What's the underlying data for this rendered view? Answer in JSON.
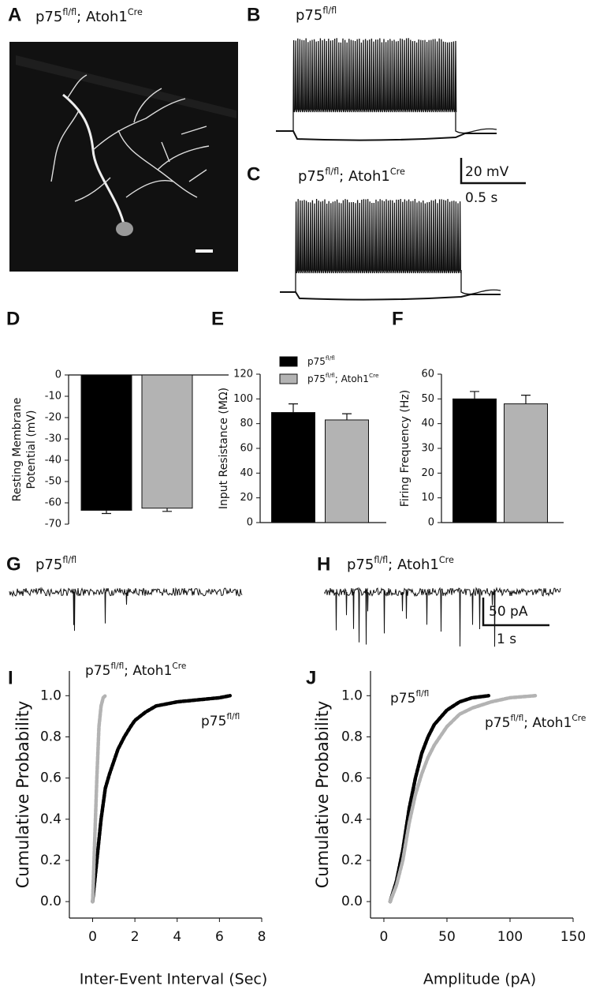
{
  "figure": {
    "panel_labels": [
      "A",
      "B",
      "C",
      "D",
      "E",
      "F",
      "G",
      "H",
      "I",
      "J"
    ],
    "genotypes": {
      "control": {
        "base": "p75",
        "sup": "fl/fl"
      },
      "mutant": {
        "base": "p75",
        "sup": "fl/fl",
        "base2": "; Atoh1",
        "sup2": "Cre"
      }
    },
    "scale_bars": {
      "current_clamp": [
        "20 mV",
        "0.5 s"
      ],
      "voltage_clamp": [
        "50 pA",
        "1 s"
      ]
    }
  },
  "chart_data": [
    {
      "type": "bar",
      "panel": "D",
      "ylabel": [
        "Resting Membrane",
        "Potential (mV)"
      ],
      "ylim": [
        -70,
        0
      ],
      "yticks": [
        0,
        -10,
        -20,
        -30,
        -40,
        -50,
        -60,
        -70
      ],
      "series": [
        {
          "color": "#000000",
          "values": [
            -63.5
          ],
          "errors": [
            1.5
          ]
        },
        {
          "color": "#b3b3b3",
          "values": [
            -62.5
          ],
          "errors": [
            1.5
          ]
        }
      ]
    },
    {
      "type": "bar",
      "panel": "E",
      "ylabel": [
        "Input Resistance (MΩ)"
      ],
      "ylim": [
        0,
        120
      ],
      "yticks": [
        0,
        20,
        40,
        60,
        80,
        100,
        120
      ],
      "series": [
        {
          "name": {
            "base": "p75",
            "sup": "fl/fl"
          },
          "color": "#000000",
          "values": [
            89
          ],
          "errors": [
            7
          ]
        },
        {
          "name": {
            "base": "p75",
            "sup": "fl/fl",
            "base2": "; Atoh1",
            "sup2": "Cre"
          },
          "color": "#b3b3b3",
          "values": [
            83
          ],
          "errors": [
            5
          ]
        }
      ]
    },
    {
      "type": "bar",
      "panel": "F",
      "ylabel": [
        "Firing Frequency (Hz)"
      ],
      "ylim": [
        0,
        60
      ],
      "yticks": [
        0,
        10,
        20,
        30,
        40,
        50,
        60
      ],
      "series": [
        {
          "color": "#000000",
          "values": [
            50
          ],
          "errors": [
            3
          ]
        },
        {
          "color": "#b3b3b3",
          "values": [
            48
          ],
          "errors": [
            3.5
          ]
        }
      ]
    },
    {
      "type": "line",
      "panel": "I",
      "xlabel": "Inter-Event Interval (Sec)",
      "ylabel": "Cumulative Probability",
      "xlim": [
        -1.1,
        8
      ],
      "xticks": [
        0,
        2,
        4,
        6,
        8
      ],
      "ylim": [
        -0.08,
        1.12
      ],
      "yticks": [
        {
          "value": 0,
          "label": "0.0"
        },
        {
          "value": 0.2,
          "label": "0.2"
        },
        {
          "value": 0.4,
          "label": "0.4"
        },
        {
          "value": 0.6,
          "label": "0.6"
        },
        {
          "value": 0.8,
          "label": "0.8"
        },
        {
          "value": 1,
          "label": "1.0"
        }
      ],
      "series": [
        {
          "name": {
            "base": "p75",
            "sup": "fl/fl"
          },
          "color": "#000000",
          "x": [
            0,
            0.2,
            0.4,
            0.6,
            0.8,
            1.0,
            1.2,
            1.5,
            1.8,
            2.0,
            2.5,
            3.0,
            3.5,
            4.0,
            5.0,
            6.0,
            6.5
          ],
          "values": [
            0,
            0.2,
            0.4,
            0.55,
            0.62,
            0.68,
            0.74,
            0.8,
            0.85,
            0.88,
            0.92,
            0.95,
            0.96,
            0.97,
            0.98,
            0.99,
            1.0
          ]
        },
        {
          "name": {
            "base": "p75",
            "sup": "fl/fl",
            "base2": "; Atoh1",
            "sup2": "Cre"
          },
          "color": "#b3b3b3",
          "x": [
            0,
            0.1,
            0.2,
            0.3,
            0.4,
            0.5,
            0.6
          ],
          "values": [
            0,
            0.3,
            0.6,
            0.85,
            0.95,
            0.99,
            1.0
          ]
        }
      ]
    },
    {
      "type": "line",
      "panel": "J",
      "xlabel": "Amplitude (pA)",
      "ylabel": "Cumulative Probability",
      "xlim": [
        -10.6,
        150
      ],
      "xticks": [
        0,
        50,
        100,
        150
      ],
      "ylim": [
        -0.08,
        1.12
      ],
      "yticks": [
        {
          "value": 0,
          "label": "0.0"
        },
        {
          "value": 0.2,
          "label": "0.2"
        },
        {
          "value": 0.4,
          "label": "0.4"
        },
        {
          "value": 0.6,
          "label": "0.6"
        },
        {
          "value": 0.8,
          "label": "0.8"
        },
        {
          "value": 1,
          "label": "1.0"
        }
      ],
      "series": [
        {
          "name": {
            "base": "p75",
            "sup": "fl/fl"
          },
          "color": "#000000",
          "x": [
            5,
            10,
            15,
            20,
            25,
            30,
            35,
            40,
            50,
            60,
            70,
            83
          ],
          "values": [
            0,
            0.1,
            0.25,
            0.45,
            0.6,
            0.72,
            0.8,
            0.86,
            0.93,
            0.97,
            0.99,
            1.0
          ]
        },
        {
          "name": {
            "base": "p75",
            "sup": "fl/fl",
            "base2": "; Atoh1",
            "sup2": "Cre"
          },
          "color": "#b3b3b3",
          "x": [
            5,
            10,
            15,
            20,
            25,
            30,
            35,
            40,
            50,
            60,
            70,
            85,
            100,
            120
          ],
          "values": [
            0,
            0.08,
            0.2,
            0.38,
            0.52,
            0.62,
            0.7,
            0.76,
            0.85,
            0.91,
            0.94,
            0.97,
            0.99,
            1.0
          ]
        }
      ]
    }
  ]
}
